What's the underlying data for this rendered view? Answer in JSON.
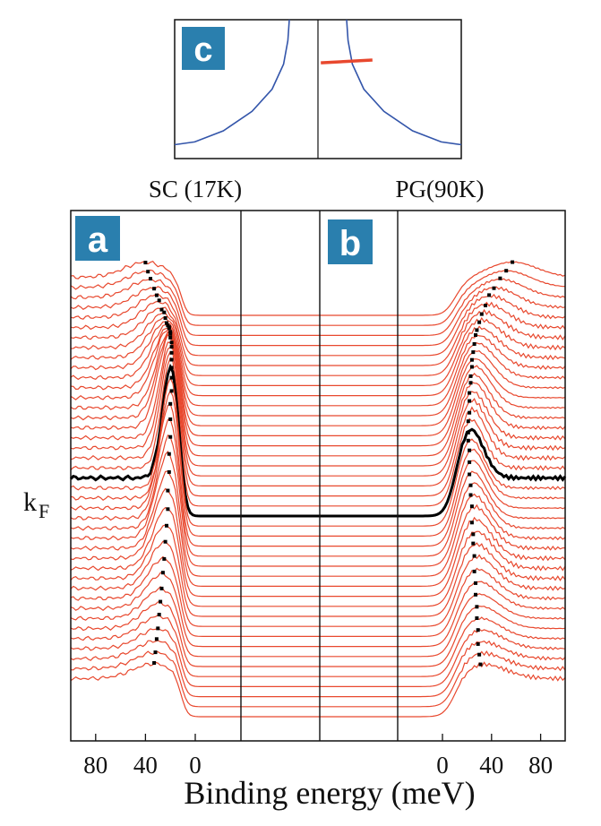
{
  "chart_data": [
    {
      "type": "line",
      "panel": "c",
      "xlim": [
        -1,
        1
      ],
      "ylim": [
        0,
        1
      ],
      "series": [
        {
          "color": "#3355aa",
          "x": [
            -0.2,
            -0.21,
            -0.24,
            -0.32,
            -0.46,
            -0.66,
            -0.86,
            -1.0
          ],
          "y": [
            1.0,
            0.85,
            0.68,
            0.5,
            0.34,
            0.2,
            0.12,
            0.1
          ]
        },
        {
          "color": "#3355aa",
          "x": [
            0.2,
            0.21,
            0.24,
            0.32,
            0.46,
            0.66,
            0.86,
            1.0
          ],
          "y": [
            1.0,
            0.85,
            0.68,
            0.5,
            0.34,
            0.2,
            0.12,
            0.1
          ]
        },
        {
          "color": "#e8482e",
          "x": [
            0.02,
            0.38
          ],
          "y": [
            0.69,
            0.71
          ]
        }
      ],
      "badge": "c",
      "colors": {
        "badge": "#2a7fae"
      }
    },
    {
      "type": "line",
      "panels": [
        "a",
        "b"
      ],
      "panel_titles": [
        "SC (17K)",
        "PG(90K)"
      ],
      "xlabel": "Binding energy (meV)",
      "tick_labels_left": [
        "80",
        "40",
        "0"
      ],
      "tick_values_left": [
        80,
        40,
        0
      ],
      "tick_labels_right": [
        "0",
        "40",
        "80"
      ],
      "tick_values_right": [
        0,
        40,
        80
      ],
      "xlim_left": [
        100,
        -100
      ],
      "xlim_right": [
        -100,
        100
      ],
      "ylabel_marker": "k",
      "ylabel_marker_sub": "F",
      "n_curves": 41,
      "kf_index": 20,
      "colors": {
        "curves": "#e8482e",
        "kf": "#000000",
        "badge": "#2a7fae"
      },
      "sc_peak_positions_meV": [
        40,
        38,
        36,
        33,
        31,
        29,
        27,
        25,
        24,
        23,
        22,
        21,
        21,
        20,
        20,
        20,
        19,
        19,
        19,
        19,
        19,
        19,
        19,
        20,
        20,
        20,
        21,
        21,
        22,
        22,
        23,
        24,
        25,
        26,
        27,
        28,
        29,
        30,
        31,
        32,
        33
      ],
      "pg_peak_positions_meV": [
        57,
        52,
        47,
        42,
        38,
        35,
        32,
        30,
        28,
        27,
        26,
        25,
        24,
        24,
        23,
        23,
        22,
        22,
        22,
        21,
        21,
        21,
        22,
        22,
        22,
        23,
        23,
        24,
        24,
        25,
        25,
        26,
        26,
        27,
        27,
        28,
        28,
        29,
        29,
        30,
        31
      ]
    }
  ]
}
